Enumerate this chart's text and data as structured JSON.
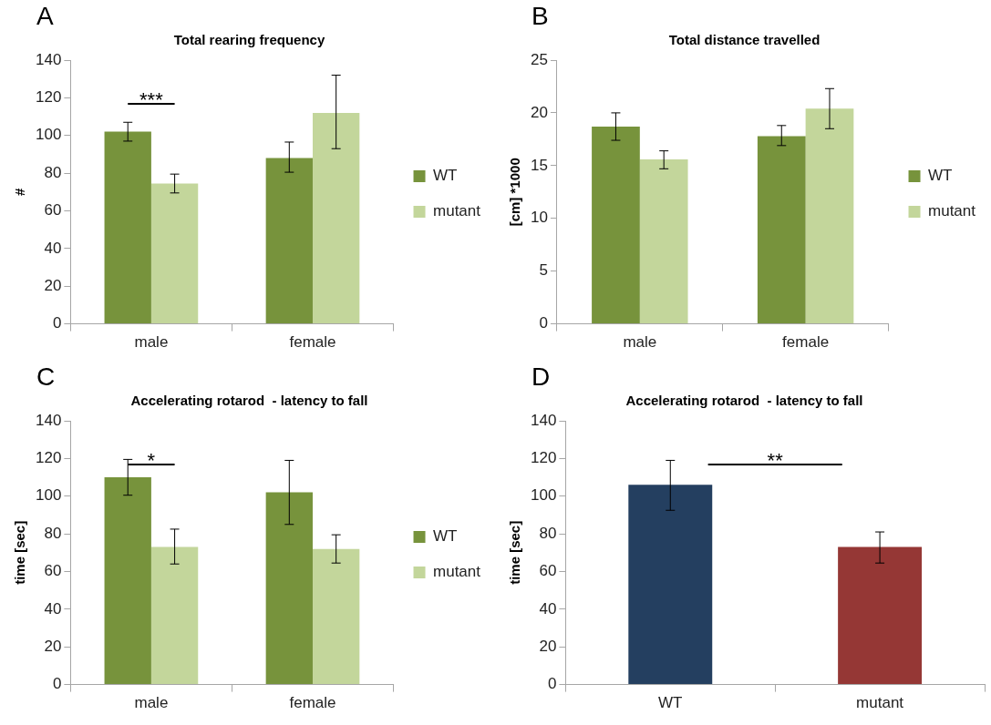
{
  "chart_data": [
    {
      "type": "bar",
      "title": "Total rearing frequency",
      "ylabel": "#",
      "categories": [
        "male",
        "female"
      ],
      "series": [
        {
          "name": "WT",
          "color": "#77933c",
          "values": [
            102,
            88
          ],
          "errors": [
            [
              97,
              107
            ],
            [
              80.5,
              96.5
            ]
          ]
        },
        {
          "name": "mutant",
          "color": "#c3d69b",
          "values": [
            74.5,
            112
          ],
          "errors": [
            [
              69.5,
              79.5
            ],
            [
              93,
              132
            ]
          ]
        }
      ],
      "ylim": [
        0,
        140
      ],
      "yticks": [
        0,
        20,
        40,
        60,
        80,
        100,
        120,
        140
      ],
      "grid": false,
      "legend": "right",
      "annotations": [
        "A",
        "***"
      ]
    },
    {
      "type": "bar",
      "title": "Total distance travelled",
      "ylabel": "[cm] *1000",
      "categories": [
        "male",
        "female"
      ],
      "series": [
        {
          "name": "WT",
          "color": "#77933c",
          "values": [
            18.7,
            17.8
          ],
          "errors": [
            [
              17.4,
              20
            ],
            [
              16.9,
              18.8
            ]
          ]
        },
        {
          "name": "mutant",
          "color": "#c3d69b",
          "values": [
            15.6,
            20.4
          ],
          "errors": [
            [
              14.7,
              16.4
            ],
            [
              18.5,
              22.3
            ]
          ]
        }
      ],
      "ylim": [
        0,
        25
      ],
      "yticks": [
        0,
        5,
        10,
        15,
        20,
        25
      ],
      "grid": false,
      "legend": "right",
      "annotations": [
        "B"
      ]
    },
    {
      "type": "bar",
      "title": "Accelerating rotarod  - latency to fall",
      "ylabel": "time [sec]",
      "categories": [
        "male",
        "female"
      ],
      "series": [
        {
          "name": "WT",
          "color": "#77933c",
          "values": [
            110,
            102
          ],
          "errors": [
            [
              100.5,
              119.5
            ],
            [
              85,
              119
            ]
          ]
        },
        {
          "name": "mutant",
          "color": "#c3d69b",
          "values": [
            73,
            72
          ],
          "errors": [
            [
              64,
              82.5
            ],
            [
              64.5,
              79.5
            ]
          ]
        }
      ],
      "ylim": [
        0,
        140
      ],
      "yticks": [
        0,
        20,
        40,
        60,
        80,
        100,
        120,
        140
      ],
      "grid": false,
      "legend": "right",
      "annotations": [
        "C",
        "*"
      ]
    },
    {
      "type": "bar",
      "title": "Accelerating rotarod  - latency to fall",
      "ylabel": "time [sec]",
      "categories": [
        "WT",
        "mutant"
      ],
      "values": [
        106,
        73
      ],
      "colors": [
        "#243f60",
        "#953735"
      ],
      "errors": [
        [
          92.5,
          119
        ],
        [
          64.5,
          81
        ]
      ],
      "ylim": [
        0,
        140
      ],
      "yticks": [
        0,
        20,
        40,
        60,
        80,
        100,
        120,
        140
      ],
      "grid": false,
      "legend": false,
      "annotations": [
        "D",
        "**"
      ]
    }
  ]
}
